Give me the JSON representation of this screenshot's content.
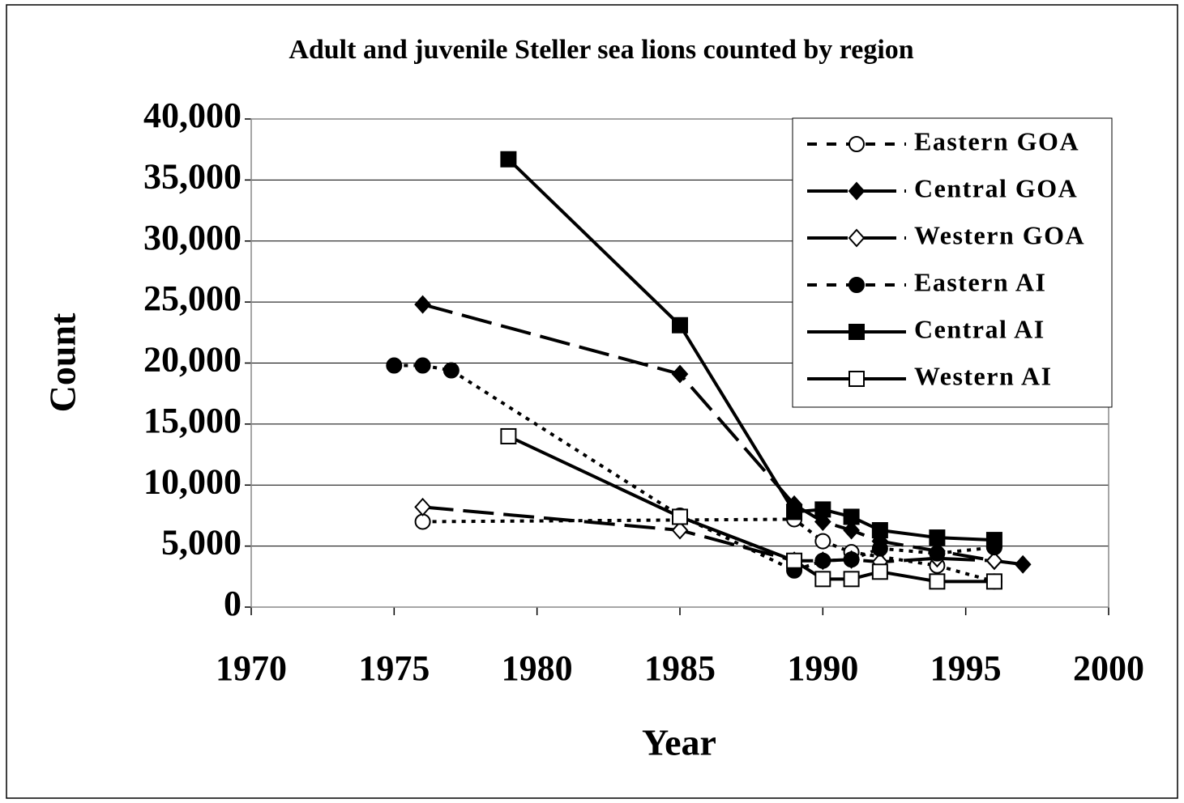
{
  "chart_data": {
    "type": "line",
    "title": "Adult and juvenile Steller sea lions counted by region",
    "x_label": "Year",
    "y_label": "Count",
    "xlim": [
      1970,
      2000
    ],
    "xticks": [
      1970,
      1975,
      1980,
      1985,
      1990,
      1995,
      2000
    ],
    "ylim": [
      0,
      40000
    ],
    "yticks": [
      0,
      {
        "value": 5000,
        "label": "5,000"
      },
      {
        "value": 10000,
        "label": "10,000"
      },
      {
        "value": 15000,
        "label": "15,000"
      },
      {
        "value": 20000,
        "label": "20,000"
      },
      {
        "value": 25000,
        "label": "25,000"
      },
      {
        "value": 30000,
        "label": "30,000"
      },
      {
        "value": 35000,
        "label": "35,000"
      },
      {
        "value": 40000,
        "label": "40,000"
      }
    ],
    "grid": true,
    "legend": "upper right",
    "series": [
      {
        "name": "Eastern GOA",
        "color": "#000000",
        "dash": "dotted",
        "marker": "circle-open",
        "x": [
          1976,
          1989,
          1990,
          1991,
          1994,
          1996
        ],
        "values": [
          7000,
          7200,
          5400,
          4500,
          3400,
          2100
        ]
      },
      {
        "name": "Central GOA",
        "color": "#000000",
        "dash": "dashed",
        "marker": "diamond-filled",
        "x": [
          1976,
          1985,
          1989,
          1990,
          1991,
          1992,
          1994,
          1996,
          1997
        ],
        "values": [
          24800,
          19100,
          8400,
          7000,
          6300,
          5400,
          4600,
          3800,
          3500
        ]
      },
      {
        "name": "Western GOA",
        "color": "#000000",
        "dash": "dashed",
        "marker": "diamond-open",
        "x": [
          1976,
          1985,
          1989,
          1990,
          1991,
          1992,
          1994,
          1996
        ],
        "values": [
          8200,
          6300,
          3800,
          3800,
          3900,
          3700,
          4000,
          3800
        ]
      },
      {
        "name": "Eastern AI",
        "color": "#000000",
        "dash": "dotted",
        "marker": "circle-filled",
        "x": [
          1975,
          1976,
          1977,
          1985,
          1989,
          1990,
          1991,
          1992,
          1994,
          1996
        ],
        "values": [
          19800,
          19800,
          19400,
          7500,
          3000,
          3800,
          3900,
          4800,
          4400,
          4900
        ]
      },
      {
        "name": "Central AI",
        "color": "#000000",
        "dash": "solid",
        "marker": "square-filled",
        "x": [
          1979,
          1985,
          1989,
          1990,
          1991,
          1992,
          1994,
          1996
        ],
        "values": [
          36700,
          23100,
          7800,
          8000,
          7400,
          6300,
          5700,
          5500
        ]
      },
      {
        "name": "Western AI",
        "color": "#000000",
        "dash": "solid",
        "marker": "square-open",
        "x": [
          1979,
          1985,
          1989,
          1990,
          1991,
          1992,
          1994,
          1996
        ],
        "values": [
          14000,
          7400,
          3800,
          2300,
          2300,
          2900,
          2100,
          2100
        ]
      }
    ]
  }
}
